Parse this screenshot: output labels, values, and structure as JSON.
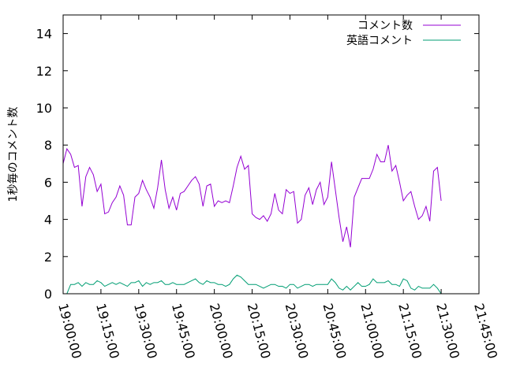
{
  "chart_data": {
    "type": "line",
    "title": "",
    "xlabel": "",
    "ylabel": "1秒毎のコメント数",
    "x_tick_labels": [
      "19:00:00",
      "19:15:00",
      "19:30:00",
      "19:45:00",
      "20:00:00",
      "20:15:00",
      "20:30:00",
      "20:45:00",
      "21:00:00",
      "21:15:00",
      "21:30:00",
      "21:45:00"
    ],
    "y_tick_labels": [
      "0",
      "2",
      "4",
      "6",
      "8",
      "10",
      "12",
      "14"
    ],
    "xlim": [
      "19:00:00",
      "21:45:00"
    ],
    "ylim": [
      0,
      15
    ],
    "grid": false,
    "legend_position": "top-right",
    "series": [
      {
        "name": "コメント数",
        "color": "#9400d3",
        "start": "19:00:00",
        "step_minutes": 1.5,
        "values": [
          7.0,
          7.8,
          7.5,
          6.8,
          6.9,
          4.7,
          6.3,
          6.8,
          6.4,
          5.5,
          5.9,
          4.3,
          4.4,
          4.9,
          5.2,
          5.8,
          5.3,
          3.7,
          3.7,
          5.2,
          5.4,
          6.1,
          5.6,
          5.2,
          4.6,
          5.7,
          7.2,
          5.6,
          4.6,
          5.2,
          4.5,
          5.4,
          5.5,
          5.8,
          6.1,
          6.3,
          5.9,
          4.7,
          5.8,
          5.9,
          4.7,
          5.0,
          4.9,
          5.0,
          4.9,
          5.8,
          6.8,
          7.4,
          6.7,
          6.9,
          4.3,
          4.1,
          4.0,
          4.2,
          3.9,
          4.3,
          5.4,
          4.5,
          4.3,
          5.6,
          5.4,
          5.5,
          3.8,
          4.0,
          5.3,
          5.7,
          4.8,
          5.6,
          6.0,
          4.8,
          5.2,
          7.1,
          5.6,
          4.1,
          2.8,
          3.6,
          2.5,
          5.2,
          5.7,
          6.2,
          6.2,
          6.2,
          6.7,
          7.5,
          7.1,
          7.1,
          8.0,
          6.6,
          6.9,
          6.0,
          5.0,
          5.3,
          5.5,
          4.7,
          4.0,
          4.2,
          4.7,
          3.9,
          6.6,
          6.8,
          5.0
        ]
      },
      {
        "name": "英語コメント",
        "color": "#009e73",
        "start": "19:00:00",
        "step_minutes": 1.5,
        "values": [
          0.0,
          0.0,
          0.5,
          0.5,
          0.6,
          0.4,
          0.6,
          0.5,
          0.5,
          0.7,
          0.6,
          0.4,
          0.5,
          0.6,
          0.5,
          0.6,
          0.5,
          0.4,
          0.6,
          0.6,
          0.7,
          0.4,
          0.6,
          0.5,
          0.6,
          0.6,
          0.7,
          0.5,
          0.5,
          0.6,
          0.5,
          0.5,
          0.5,
          0.6,
          0.7,
          0.8,
          0.6,
          0.5,
          0.7,
          0.6,
          0.6,
          0.5,
          0.5,
          0.4,
          0.5,
          0.8,
          1.0,
          0.9,
          0.7,
          0.5,
          0.5,
          0.5,
          0.4,
          0.3,
          0.4,
          0.5,
          0.5,
          0.4,
          0.4,
          0.3,
          0.5,
          0.5,
          0.3,
          0.4,
          0.5,
          0.5,
          0.4,
          0.5,
          0.5,
          0.5,
          0.5,
          0.8,
          0.6,
          0.3,
          0.2,
          0.4,
          0.2,
          0.4,
          0.6,
          0.4,
          0.4,
          0.5,
          0.8,
          0.6,
          0.6,
          0.6,
          0.7,
          0.5,
          0.5,
          0.4,
          0.8,
          0.7,
          0.3,
          0.2,
          0.4,
          0.3,
          0.3,
          0.3,
          0.5,
          0.3,
          0.0
        ]
      }
    ]
  }
}
